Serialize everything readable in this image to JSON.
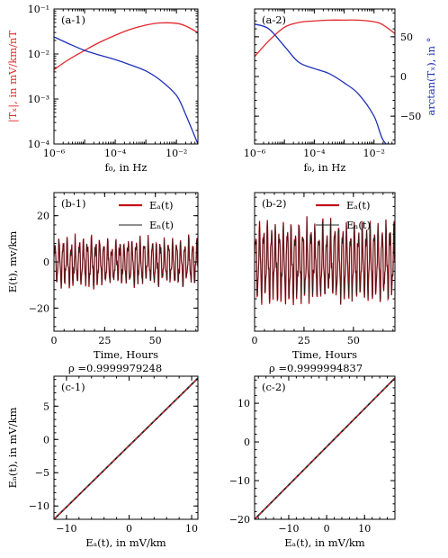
{
  "colors": {
    "red": "#e3262b",
    "blue": "#1f2fb8",
    "black": "#222222",
    "dark_red": "#a00000"
  },
  "chart_data": [
    {
      "id": "a-1",
      "type": "line",
      "panel_label": "(a-1)",
      "xlabel": "f₀, in Hz",
      "ylabel": "|Tₓ|, in mV/km/nT",
      "xscale": "log",
      "yscale": "log",
      "xlim": [
        1e-06,
        0.05
      ],
      "ylim": [
        0.0001,
        0.1
      ],
      "xticks": [
        1e-06,
        0.0001,
        0.01
      ],
      "xtick_labels": [
        "10⁻⁶",
        "10⁻⁴",
        "10⁻²"
      ],
      "yticks": [
        0.0001,
        0.001,
        0.01,
        0.1
      ],
      "ytick_labels": [
        "10⁻⁴",
        "10⁻³",
        "10⁻²",
        "10⁻¹"
      ],
      "series": [
        {
          "color": "#e3262b",
          "axis": "left",
          "x": [
            1e-06,
            3e-06,
            1e-05,
            3e-05,
            0.0001,
            0.0003,
            0.001,
            0.003,
            0.01,
            0.02,
            0.05
          ],
          "y": [
            0.0045,
            0.0075,
            0.012,
            0.018,
            0.026,
            0.035,
            0.044,
            0.049,
            0.048,
            0.042,
            0.03
          ]
        },
        {
          "color": "#1f2fb8",
          "axis": "right",
          "x": [
            1e-06,
            3e-06,
            1e-05,
            3e-05,
            0.0001,
            0.0003,
            0.001,
            0.003,
            0.01,
            0.02,
            0.05
          ],
          "y": [
            0.024,
            0.017,
            0.012,
            0.0095,
            0.0075,
            0.0058,
            0.0042,
            0.0026,
            0.0012,
            0.00045,
            0.0001
          ]
        }
      ]
    },
    {
      "id": "a-2",
      "type": "line",
      "panel_label": "(a-2)",
      "xlabel": "f₀, in Hz",
      "ylabel_right": "arctan(Tₓ), in °",
      "xscale": "log",
      "xlim": [
        1e-06,
        0.05
      ],
      "ylim": [
        -85,
        85
      ],
      "xticks": [
        1e-06,
        0.0001,
        0.01
      ],
      "xtick_labels": [
        "10⁻⁶",
        "10⁻⁴",
        "10⁻²"
      ],
      "yticks": [
        -50,
        0,
        50
      ],
      "ytick_labels": [
        "−50",
        "0",
        "50"
      ],
      "series": [
        {
          "color": "#e3262b",
          "x": [
            1e-06,
            3e-06,
            1e-05,
            3e-05,
            0.0001,
            0.0003,
            0.001,
            0.003,
            0.01,
            0.02,
            0.05
          ],
          "y": [
            25,
            45,
            62,
            68,
            70,
            71,
            71,
            71,
            69,
            65,
            54
          ]
        },
        {
          "color": "#1f2fb8",
          "x": [
            1e-06,
            3e-06,
            1e-05,
            3e-05,
            0.0001,
            0.0003,
            0.001,
            0.003,
            0.01,
            0.02,
            0.05
          ],
          "y": [
            66,
            60,
            38,
            18,
            10,
            4,
            -8,
            -22,
            -50,
            -80,
            -95
          ]
        }
      ]
    },
    {
      "id": "b-1",
      "type": "line",
      "panel_label": "(b-1)",
      "xlabel": "Time, Hours",
      "ylabel": "E(t), mv/km",
      "xlim": [
        0,
        71
      ],
      "ylim": [
        -30,
        30
      ],
      "xticks": [
        0,
        25,
        50
      ],
      "xtick_labels": [
        "0",
        "25",
        "50"
      ],
      "yticks": [
        -20,
        0,
        20
      ],
      "ytick_labels": [
        "−20",
        "0",
        "20"
      ],
      "signal": {
        "amplitude": 7.5,
        "period_hours": 2.0,
        "noise": 2.5
      },
      "legend": [
        {
          "label": "Eₐ(t)",
          "color": "#c1121a"
        },
        {
          "label": "Eₙ(t)",
          "color": "#222222"
        }
      ]
    },
    {
      "id": "b-2",
      "type": "line",
      "panel_label": "(b-2)",
      "xlabel": "Time, Hours",
      "xlim": [
        0,
        71
      ],
      "ylim": [
        -30,
        30
      ],
      "xticks": [
        0,
        25,
        50
      ],
      "xtick_labels": [
        "0",
        "25",
        "50"
      ],
      "signal": {
        "amplitude": 13,
        "period_hours": 2.0,
        "noise": 3
      },
      "legend": [
        {
          "label": "Eₐ(t)",
          "color": "#c1121a"
        },
        {
          "label": "Eₙ(t)",
          "color": "#222222"
        }
      ]
    },
    {
      "id": "c-1",
      "type": "line",
      "panel_label": "(c-1)",
      "title": "ρ =0.9999979248",
      "xlabel": "Eₐ(t), in mV/km",
      "ylabel": "Eₙ(t), in mV/km",
      "xlim": [
        -12,
        11
      ],
      "ylim": [
        -12,
        9.5
      ],
      "xticks": [
        -10,
        0,
        10
      ],
      "xtick_labels": [
        "−10",
        "0",
        "10"
      ],
      "yticks": [
        -10,
        -5,
        0,
        5
      ],
      "ytick_labels": [
        "−10",
        "−5",
        "0",
        "5"
      ],
      "series": [
        {
          "color": "#222222",
          "x": [
            -12,
            11
          ],
          "y": [
            -12,
            9.2
          ]
        },
        {
          "color": "#e3262b",
          "dashed": true,
          "x": [
            -12,
            11
          ],
          "y": [
            -12,
            9.2
          ]
        }
      ]
    },
    {
      "id": "c-2",
      "type": "line",
      "panel_label": "(c-2)",
      "title": "ρ =0.9999994837",
      "xlabel": "Eₐ(t), in mV/km",
      "xlim": [
        -19,
        18
      ],
      "ylim": [
        -20,
        17
      ],
      "xticks": [
        -10,
        0,
        10
      ],
      "xtick_labels": [
        "−10",
        "0",
        "10"
      ],
      "yticks": [
        -20,
        -10,
        0,
        10
      ],
      "ytick_labels": [
        "−20",
        "−10",
        "0",
        "10"
      ],
      "series": [
        {
          "color": "#222222",
          "x": [
            -19,
            18
          ],
          "y": [
            -20,
            16.5
          ]
        },
        {
          "color": "#e3262b",
          "dashed": true,
          "x": [
            -19,
            18
          ],
          "y": [
            -20,
            16.5
          ]
        }
      ]
    }
  ]
}
